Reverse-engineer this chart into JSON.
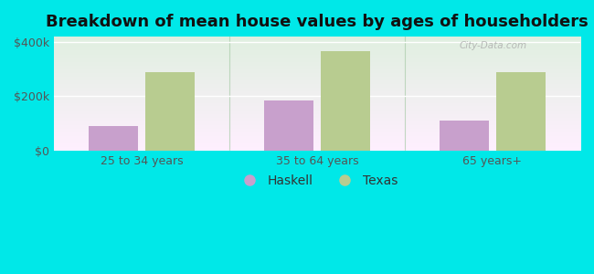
{
  "title": "Breakdown of mean house values by ages of householders",
  "categories": [
    "25 to 34 years",
    "35 to 64 years",
    "65 years+"
  ],
  "haskell_values": [
    90000,
    185000,
    110000
  ],
  "texas_values": [
    290000,
    365000,
    290000
  ],
  "haskell_color": "#c8a0cc",
  "texas_color": "#b8cc90",
  "background_outer": "#00e8e8",
  "ylim": [
    0,
    420000
  ],
  "yticks": [
    0,
    200000,
    400000
  ],
  "ytick_labels": [
    "$0",
    "$200k",
    "$400k"
  ],
  "bar_width": 0.28,
  "legend_labels": [
    "Haskell",
    "Texas"
  ],
  "title_fontsize": 13,
  "tick_fontsize": 9,
  "legend_fontsize": 10,
  "watermark": "City-Data.com",
  "grid_color": "#ffffff",
  "separator_color": "#aaccaa"
}
